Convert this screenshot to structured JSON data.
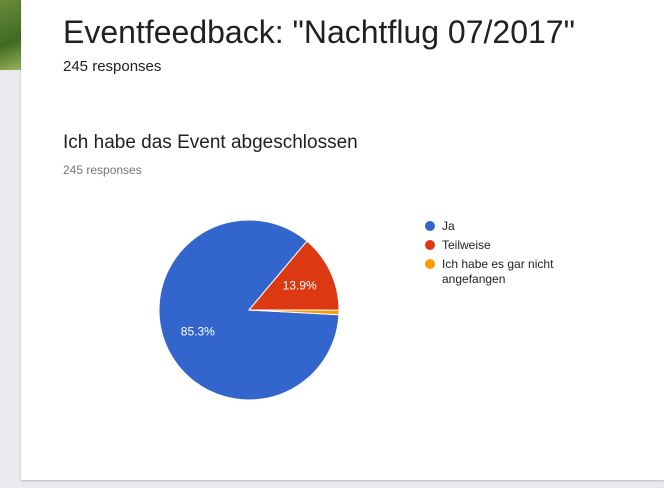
{
  "header": {
    "title": "Eventfeedback: \"Nachtflug 07/2017\"",
    "responses": "245 responses"
  },
  "chart_data": {
    "type": "pie",
    "title": "Ich habe das Event abgeschlossen",
    "subtitle": "245 responses",
    "categories": [
      "Ja",
      "Teilweise",
      "Ich habe es gar nicht angefangen"
    ],
    "values": [
      85.3,
      13.9,
      0.8
    ],
    "value_labels": [
      "85.3%",
      "13.9%",
      null
    ],
    "colors": [
      "#3366cc",
      "#dc3912",
      "#ff9900"
    ],
    "legend": "right"
  }
}
